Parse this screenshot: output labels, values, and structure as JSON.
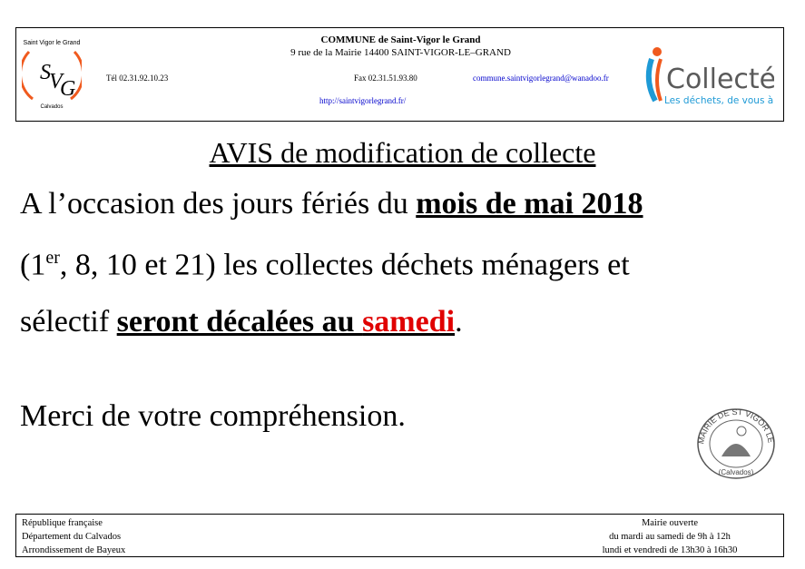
{
  "header": {
    "commune": "COMMUNE de Saint-Vigor le Grand",
    "address": "9 rue de la Mairie  14400 SAINT-VIGOR-LE–GRAND",
    "tel": "Tél 02.31.92.10.23",
    "fax": "Fax 02.31.51.93.80",
    "email": "commune.saintvigorlegrand@wanadoo.fr",
    "website": "http://saintvigorlegrand.fr/",
    "logo_left": {
      "ring_top": "Saint Vigor le Grand",
      "ring_bottom": "Calvados",
      "monogram": "SVG"
    },
    "logo_right": {
      "name": "Collectéa",
      "tagline": "Les déchets, de vous à nous"
    }
  },
  "main": {
    "title": "AVIS de modification de collecte",
    "line1_prefix": "A l’occasion des jours fériés du ",
    "line1_bold": "mois de mai 2018",
    "line2_open": "(1",
    "line2_sup": "er",
    "line2_rest": ", 8, 10 et 21) les collectes déchets ménagers et",
    "line3_prefix": "sélectif ",
    "line3_bold": "seront décalées au ",
    "line3_red": "samedi",
    "line3_end": ".",
    "thanks": "Merci de votre compréhension.",
    "stamp": {
      "text": "MAIRIE DE ST VIGOR LE GRAND",
      "sub": "(Calvados)"
    }
  },
  "footer": {
    "left": [
      "République française",
      "Département du Calvados",
      "Arrondissement de Bayeux"
    ],
    "right": [
      "Mairie ouverte",
      "du mardi au samedi de 9h à 12h",
      "lundi et vendredi de 13h30 à 16h30"
    ]
  },
  "colors": {
    "red": "#e00000",
    "link": "#0000cc",
    "logo_orange": "#f05a1e",
    "logo_blue": "#1e9ad6",
    "logo_gray": "#5a5a5a"
  }
}
